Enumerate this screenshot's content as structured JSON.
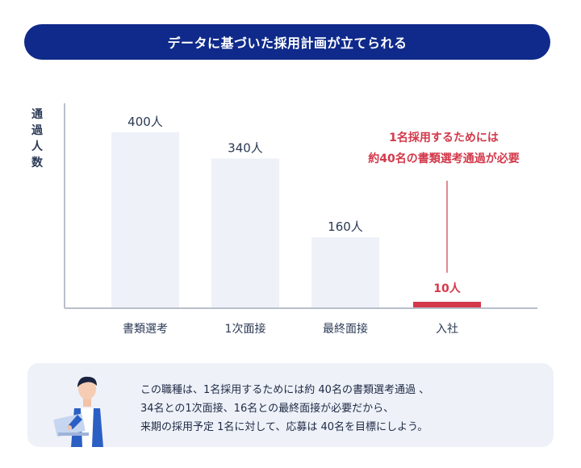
{
  "banner": {
    "title": "データに基づいた採用計画が立てられる"
  },
  "colors": {
    "banner": "#0f2a8a",
    "bar": "#eef1f8",
    "highlight": "#d3394b",
    "text": "#2b3a55"
  },
  "chart_data": {
    "type": "bar",
    "ylabel": [
      "通",
      "過",
      "人",
      "数"
    ],
    "categories": [
      "書類選考",
      "1次面接",
      "最終面接",
      "入社"
    ],
    "values": [
      400,
      340,
      160,
      10
    ],
    "data_labels": [
      "400人",
      "340人",
      "160人",
      "10人"
    ],
    "highlight_index": 3,
    "ylim": [
      0,
      420
    ]
  },
  "callout": {
    "line1": "1名採用するためには",
    "line2": "約40名の書類選考通過が必要"
  },
  "note": {
    "line1": "この職種は、1名採用するためには約 40名の書類選考通過 、",
    "line2": "34名との1次面接、16名との最終面接が必要だから、",
    "line3": "来期の採用予定 1名に対して、応募は 40名を目標にしよう。"
  }
}
